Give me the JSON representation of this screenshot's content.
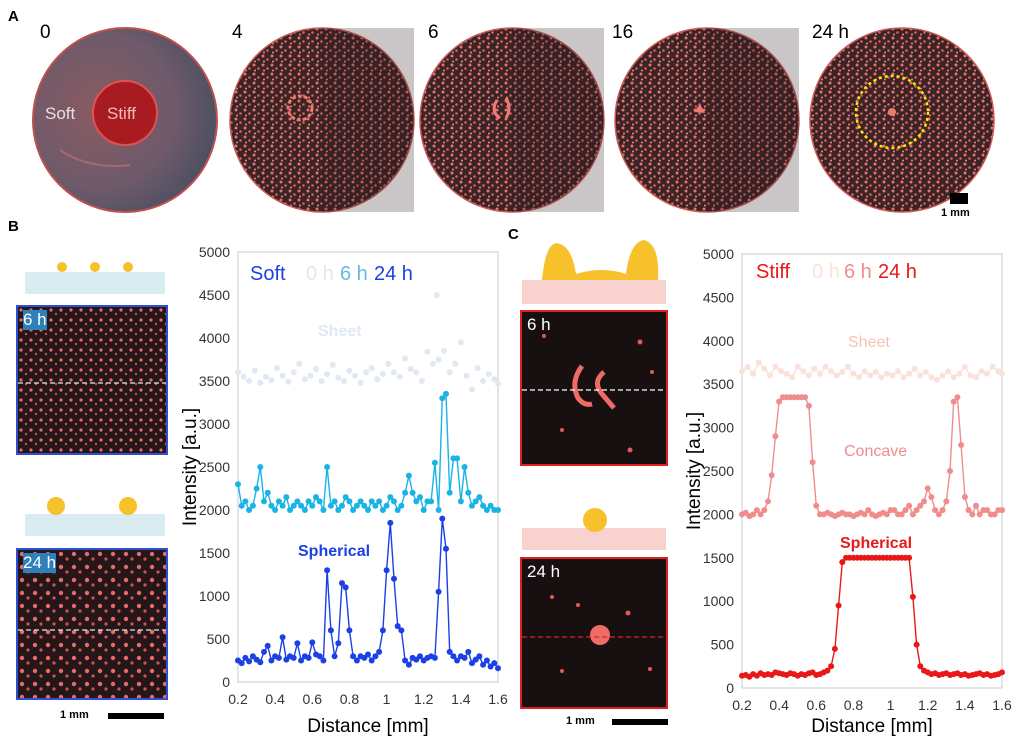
{
  "panel_a": {
    "letter": "A",
    "time_labels": [
      "0",
      "4",
      "6",
      "16",
      "24 h"
    ],
    "region_labels": {
      "soft": "Soft",
      "stiff": "Stiff"
    },
    "scale_bar": "1 mm"
  },
  "panel_b": {
    "letter": "B",
    "image_labels": [
      "6 h",
      "24 h"
    ],
    "scale_bar": "1 mm",
    "legend": {
      "group": "Soft",
      "t0": "0 h",
      "t6": "6 h",
      "t24": "24 h"
    },
    "annotations": {
      "sheet": "Sheet",
      "spherical": "Spherical"
    },
    "colors": {
      "t0": "#dfe8f3",
      "t6": "#1ab3e6",
      "t24": "#1a40e6",
      "frame": "#2c4fd6"
    }
  },
  "panel_c": {
    "letter": "C",
    "image_labels": [
      "6 h",
      "24 h"
    ],
    "scale_bar": "1 mm",
    "legend": {
      "group": "Stiff",
      "t0": "0 h",
      "t6": "6 h",
      "t24": "24 h"
    },
    "annotations": {
      "sheet": "Sheet",
      "concave": "Concave",
      "spherical": "Spherical"
    },
    "colors": {
      "t0": "#fbe2d9",
      "t6": "#f08c8c",
      "t24": "#e81818",
      "frame": "#e02020"
    }
  },
  "chart_data": [
    {
      "type": "scatter",
      "panel": "B",
      "xlabel": "Distance [mm]",
      "ylabel": "Intensity [a.u.]",
      "xlim": [
        0.2,
        1.6
      ],
      "ylim": [
        0,
        5000
      ],
      "xticks": [
        "0.2",
        "0.4",
        "0.6",
        "0.8",
        "1",
        "1.2",
        "1.4",
        "1.6"
      ],
      "yticks": [
        "0",
        "500",
        "1000",
        "1500",
        "2000",
        "2500",
        "3000",
        "3500",
        "4000",
        "4500",
        "5000"
      ],
      "grid": false,
      "series": [
        {
          "name": "0 h",
          "color": "#dfe8f3",
          "line": false,
          "x": [
            0.2,
            0.23,
            0.26,
            0.29,
            0.32,
            0.35,
            0.38,
            0.41,
            0.44,
            0.47,
            0.5,
            0.53,
            0.56,
            0.59,
            0.62,
            0.65,
            0.68,
            0.71,
            0.74,
            0.77,
            0.8,
            0.83,
            0.86,
            0.89,
            0.92,
            0.95,
            0.98,
            1.01,
            1.04,
            1.07,
            1.1,
            1.13,
            1.16,
            1.19,
            1.22,
            1.25,
            1.27,
            1.28,
            1.31,
            1.34,
            1.37,
            1.4,
            1.43,
            1.46,
            1.49,
            1.52,
            1.55,
            1.58,
            1.6
          ],
          "y": [
            3600,
            3550,
            3500,
            3620,
            3480,
            3550,
            3510,
            3650,
            3560,
            3490,
            3600,
            3700,
            3520,
            3560,
            3640,
            3500,
            3580,
            3690,
            3540,
            3500,
            3620,
            3560,
            3480,
            3600,
            3650,
            3520,
            3580,
            3700,
            3600,
            3550,
            3760,
            3640,
            3600,
            3500,
            3840,
            3700,
            4500,
            3750,
            3850,
            3600,
            3700,
            3950,
            3560,
            3400,
            3650,
            3500,
            3580,
            3520,
            3470
          ]
        },
        {
          "name": "6 h",
          "color": "#1ab3e6",
          "line": true,
          "x": [
            0.2,
            0.22,
            0.24,
            0.26,
            0.28,
            0.3,
            0.32,
            0.34,
            0.36,
            0.38,
            0.4,
            0.42,
            0.44,
            0.46,
            0.48,
            0.5,
            0.52,
            0.54,
            0.56,
            0.58,
            0.6,
            0.62,
            0.64,
            0.66,
            0.68,
            0.7,
            0.72,
            0.74,
            0.76,
            0.78,
            0.8,
            0.82,
            0.84,
            0.86,
            0.88,
            0.9,
            0.92,
            0.94,
            0.96,
            0.98,
            1.0,
            1.02,
            1.04,
            1.06,
            1.08,
            1.1,
            1.12,
            1.14,
            1.16,
            1.18,
            1.2,
            1.22,
            1.24,
            1.26,
            1.28,
            1.3,
            1.32,
            1.34,
            1.36,
            1.38,
            1.4,
            1.42,
            1.44,
            1.46,
            1.48,
            1.5,
            1.52,
            1.54,
            1.56,
            1.58,
            1.6
          ],
          "y": [
            2300,
            2050,
            2100,
            2000,
            2050,
            2250,
            2500,
            2100,
            2200,
            2050,
            2000,
            2100,
            2050,
            2150,
            2000,
            2050,
            2100,
            2050,
            2000,
            2100,
            2050,
            2150,
            2100,
            2000,
            2500,
            2050,
            2100,
            2000,
            2050,
            2150,
            2100,
            2000,
            2050,
            2100,
            2050,
            2000,
            2100,
            2050,
            2100,
            2000,
            2050,
            2150,
            2100,
            2000,
            2050,
            2200,
            2400,
            2200,
            2100,
            2150,
            2000,
            2100,
            2100,
            2550,
            2000,
            3300,
            3350,
            2200,
            2600,
            2600,
            2100,
            2500,
            2200,
            2050,
            2100,
            2150,
            2050,
            2000,
            2050,
            2000,
            2000
          ]
        },
        {
          "name": "24 h",
          "color": "#1a40e6",
          "line": true,
          "x": [
            0.2,
            0.22,
            0.24,
            0.26,
            0.28,
            0.3,
            0.32,
            0.34,
            0.36,
            0.38,
            0.4,
            0.42,
            0.44,
            0.46,
            0.48,
            0.5,
            0.52,
            0.54,
            0.56,
            0.58,
            0.6,
            0.62,
            0.64,
            0.66,
            0.68,
            0.7,
            0.72,
            0.74,
            0.76,
            0.78,
            0.8,
            0.82,
            0.84,
            0.86,
            0.88,
            0.9,
            0.92,
            0.94,
            0.96,
            0.98,
            1.0,
            1.02,
            1.04,
            1.06,
            1.08,
            1.1,
            1.12,
            1.14,
            1.16,
            1.18,
            1.2,
            1.22,
            1.24,
            1.26,
            1.28,
            1.3,
            1.32,
            1.34,
            1.36,
            1.38,
            1.4,
            1.42,
            1.44,
            1.46,
            1.48,
            1.5,
            1.52,
            1.54,
            1.56,
            1.58,
            1.6
          ],
          "y": [
            250,
            220,
            280,
            240,
            300,
            260,
            230,
            350,
            420,
            250,
            300,
            280,
            520,
            260,
            300,
            280,
            450,
            250,
            300,
            280,
            460,
            320,
            300,
            250,
            1300,
            600,
            300,
            450,
            1150,
            1100,
            600,
            300,
            250,
            300,
            280,
            320,
            250,
            300,
            350,
            600,
            1300,
            1850,
            1200,
            650,
            600,
            250,
            200,
            280,
            260,
            300,
            250,
            280,
            300,
            280,
            1050,
            1900,
            1550,
            350,
            300,
            250,
            300,
            280,
            350,
            220,
            260,
            300,
            200,
            250,
            180,
            220,
            160
          ]
        }
      ]
    },
    {
      "type": "scatter",
      "panel": "C",
      "xlabel": "Distance [mm]",
      "ylabel": "Intensity [a.u.]",
      "xlim": [
        0.2,
        1.6
      ],
      "ylim": [
        0,
        5000
      ],
      "xticks": [
        "0.2",
        "0.4",
        "0.6",
        "0.8",
        "1",
        "1.2",
        "1.4",
        "1.6"
      ],
      "yticks": [
        "0",
        "500",
        "1000",
        "1500",
        "2000",
        "2500",
        "3000",
        "3500",
        "4000",
        "4500",
        "5000"
      ],
      "grid": false,
      "series": [
        {
          "name": "0 h",
          "color": "#fbe2d9",
          "line": true,
          "x": [
            0.2,
            0.23,
            0.26,
            0.29,
            0.32,
            0.35,
            0.38,
            0.41,
            0.44,
            0.47,
            0.5,
            0.53,
            0.56,
            0.59,
            0.62,
            0.65,
            0.68,
            0.71,
            0.74,
            0.77,
            0.8,
            0.83,
            0.86,
            0.89,
            0.92,
            0.95,
            0.98,
            1.01,
            1.04,
            1.07,
            1.1,
            1.13,
            1.16,
            1.19,
            1.22,
            1.25,
            1.28,
            1.31,
            1.34,
            1.37,
            1.4,
            1.43,
            1.46,
            1.49,
            1.52,
            1.55,
            1.58,
            1.6
          ],
          "y": [
            3650,
            3700,
            3620,
            3750,
            3680,
            3600,
            3700,
            3650,
            3620,
            3580,
            3700,
            3650,
            3600,
            3680,
            3620,
            3700,
            3650,
            3600,
            3640,
            3700,
            3620,
            3580,
            3650,
            3600,
            3640,
            3580,
            3620,
            3600,
            3650,
            3580,
            3620,
            3680,
            3600,
            3640,
            3580,
            3550,
            3600,
            3650,
            3580,
            3620,
            3700,
            3600,
            3580,
            3650,
            3620,
            3700,
            3650,
            3620
          ]
        },
        {
          "name": "6 h",
          "color": "#f08c8c",
          "line": true,
          "x": [
            0.2,
            0.22,
            0.24,
            0.26,
            0.28,
            0.3,
            0.32,
            0.34,
            0.36,
            0.38,
            0.4,
            0.42,
            0.44,
            0.46,
            0.48,
            0.5,
            0.52,
            0.54,
            0.56,
            0.58,
            0.6,
            0.62,
            0.64,
            0.66,
            0.68,
            0.7,
            0.72,
            0.74,
            0.76,
            0.78,
            0.8,
            0.82,
            0.84,
            0.86,
            0.88,
            0.9,
            0.92,
            0.94,
            0.96,
            0.98,
            1.0,
            1.02,
            1.04,
            1.06,
            1.08,
            1.1,
            1.12,
            1.14,
            1.16,
            1.18,
            1.2,
            1.22,
            1.24,
            1.26,
            1.28,
            1.3,
            1.32,
            1.34,
            1.36,
            1.38,
            1.4,
            1.42,
            1.44,
            1.46,
            1.48,
            1.5,
            1.52,
            1.54,
            1.56,
            1.58,
            1.6
          ],
          "y": [
            2000,
            2020,
            1980,
            2000,
            2050,
            2000,
            2050,
            2150,
            2450,
            2900,
            3300,
            3350,
            3350,
            3350,
            3350,
            3350,
            3350,
            3350,
            3250,
            2600,
            2100,
            2000,
            2000,
            2020,
            2000,
            1980,
            2000,
            2020,
            2000,
            2000,
            1980,
            2000,
            2020,
            2000,
            2050,
            2000,
            1980,
            2000,
            2020,
            2000,
            2050,
            2050,
            2000,
            2000,
            2050,
            2100,
            2000,
            2050,
            2100,
            2150,
            2300,
            2200,
            2050,
            2000,
            2050,
            2150,
            2500,
            3300,
            3350,
            2800,
            2200,
            2050,
            2000,
            2100,
            2000,
            2050,
            2050,
            2000,
            2000,
            2050,
            2050
          ]
        },
        {
          "name": "24 h",
          "color": "#e81818",
          "line": true,
          "x": [
            0.2,
            0.22,
            0.24,
            0.26,
            0.28,
            0.3,
            0.32,
            0.34,
            0.36,
            0.38,
            0.4,
            0.42,
            0.44,
            0.46,
            0.48,
            0.5,
            0.52,
            0.54,
            0.56,
            0.58,
            0.6,
            0.62,
            0.64,
            0.66,
            0.68,
            0.7,
            0.72,
            0.74,
            0.76,
            0.78,
            0.8,
            0.82,
            0.84,
            0.86,
            0.88,
            0.9,
            0.92,
            0.94,
            0.96,
            0.98,
            1.0,
            1.02,
            1.04,
            1.06,
            1.08,
            1.1,
            1.12,
            1.14,
            1.16,
            1.18,
            1.2,
            1.22,
            1.24,
            1.26,
            1.28,
            1.3,
            1.32,
            1.34,
            1.36,
            1.38,
            1.4,
            1.42,
            1.44,
            1.46,
            1.48,
            1.5,
            1.52,
            1.54,
            1.56,
            1.58,
            1.6
          ],
          "y": [
            140,
            150,
            130,
            160,
            140,
            170,
            150,
            160,
            150,
            180,
            170,
            160,
            150,
            170,
            160,
            140,
            160,
            150,
            170,
            180,
            150,
            160,
            180,
            200,
            250,
            450,
            950,
            1450,
            1500,
            1500,
            1500,
            1500,
            1500,
            1500,
            1500,
            1500,
            1500,
            1500,
            1500,
            1500,
            1500,
            1500,
            1500,
            1500,
            1500,
            1500,
            1050,
            500,
            250,
            200,
            180,
            160,
            170,
            150,
            160,
            170,
            150,
            160,
            170,
            150,
            160,
            140,
            150,
            160,
            170,
            150,
            160,
            140,
            150,
            160,
            180
          ]
        }
      ]
    }
  ]
}
